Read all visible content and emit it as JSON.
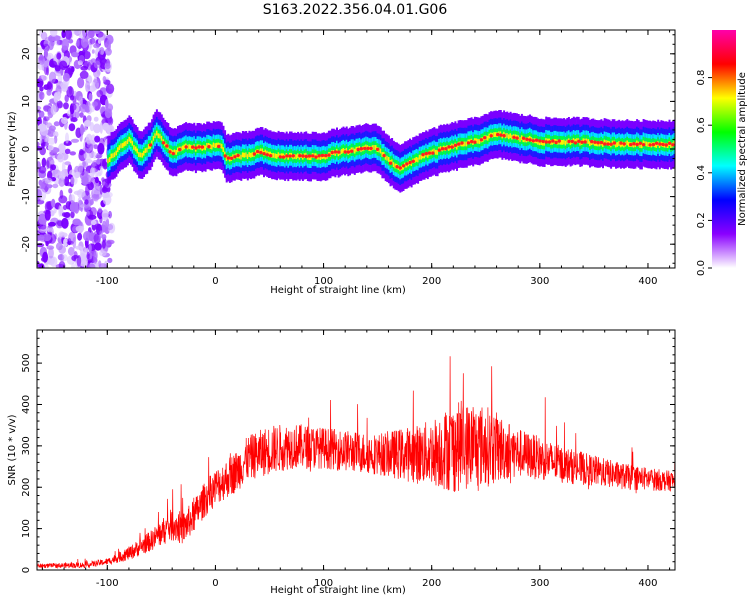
{
  "title": "S163.2022.356.04.01.G06",
  "chart_data": [
    {
      "type": "heatmap",
      "xlabel": "Height of straight line (km)",
      "ylabel": "Frequency (Hz)",
      "xlim": [
        -165,
        425
      ],
      "ylim": [
        -25,
        25
      ],
      "x_ticks": [
        -100,
        0,
        100,
        200,
        300,
        400
      ],
      "y_ticks": [
        -20,
        -10,
        0,
        10,
        20
      ],
      "noise_region_x": [
        -165,
        -100
      ],
      "ridge": {
        "x": [
          -100,
          -90,
          -80,
          -70,
          -60,
          -55,
          -50,
          -40,
          -30,
          -20,
          -10,
          0,
          5,
          10,
          20,
          30,
          40,
          50,
          60,
          70,
          80,
          90,
          100,
          110,
          120,
          130,
          140,
          150,
          160,
          170,
          180,
          190,
          200,
          210,
          220,
          230,
          240,
          250,
          260,
          270,
          280,
          290,
          300,
          320,
          340,
          360,
          380,
          400,
          420
        ],
        "y": [
          -2.5,
          0,
          2,
          -1.5,
          1,
          3.5,
          2,
          -1,
          0.5,
          0.2,
          0.5,
          0.8,
          0.5,
          -2,
          -1.5,
          -1.5,
          -0.5,
          -1.2,
          -1.5,
          -1.5,
          -1.6,
          -1.6,
          -1.5,
          -0.8,
          -0.5,
          -0.3,
          0.3,
          0,
          -2.5,
          -4,
          -3,
          -1.5,
          -0.8,
          0,
          0.5,
          1.2,
          1.5,
          2.5,
          3,
          2.8,
          2.2,
          2,
          1.5,
          1.5,
          1.5,
          1.2,
          1,
          1,
          1
        ]
      },
      "colorbar": {
        "label": "Normalized spectral amplitude",
        "range": [
          0,
          1
        ],
        "ticks": [
          0.0,
          0.2,
          0.4,
          0.6,
          0.8
        ],
        "colors": [
          "#ffffff",
          "#8a00ff",
          "#0000ff",
          "#00ffff",
          "#00ff00",
          "#ffff00",
          "#ff0000",
          "#ff00aa"
        ]
      }
    },
    {
      "type": "line",
      "xlabel": "Height of straight line (km)",
      "ylabel": "SNR (10 * v/v)",
      "xlim": [
        -165,
        425
      ],
      "ylim": [
        0,
        580
      ],
      "x_ticks": [
        -100,
        0,
        100,
        200,
        300,
        400
      ],
      "y_ticks": [
        0,
        100,
        200,
        300,
        400,
        500
      ],
      "color": "#ff0000",
      "envelope": {
        "x": [
          -165,
          -120,
          -100,
          -80,
          -60,
          -50,
          -40,
          -30,
          -20,
          -10,
          0,
          10,
          20,
          30,
          50,
          70,
          100,
          130,
          150,
          170,
          190,
          200,
          210,
          230,
          250,
          270,
          300,
          320,
          350,
          380,
          400,
          420
        ],
        "y": [
          10,
          12,
          20,
          40,
          70,
          90,
          110,
          100,
          130,
          170,
          200,
          220,
          240,
          270,
          290,
          300,
          295,
          285,
          280,
          280,
          280,
          285,
          290,
          300,
          300,
          290,
          270,
          255,
          240,
          225,
          220,
          215
        ]
      },
      "spread": {
        "x": [
          -165,
          -100,
          -60,
          -40,
          -20,
          0,
          50,
          100,
          150,
          200,
          220,
          250,
          280,
          320,
          360,
          420
        ],
        "y": [
          5,
          8,
          25,
          40,
          40,
          45,
          60,
          50,
          50,
          80,
          110,
          100,
          60,
          45,
          35,
          25
        ]
      }
    }
  ]
}
